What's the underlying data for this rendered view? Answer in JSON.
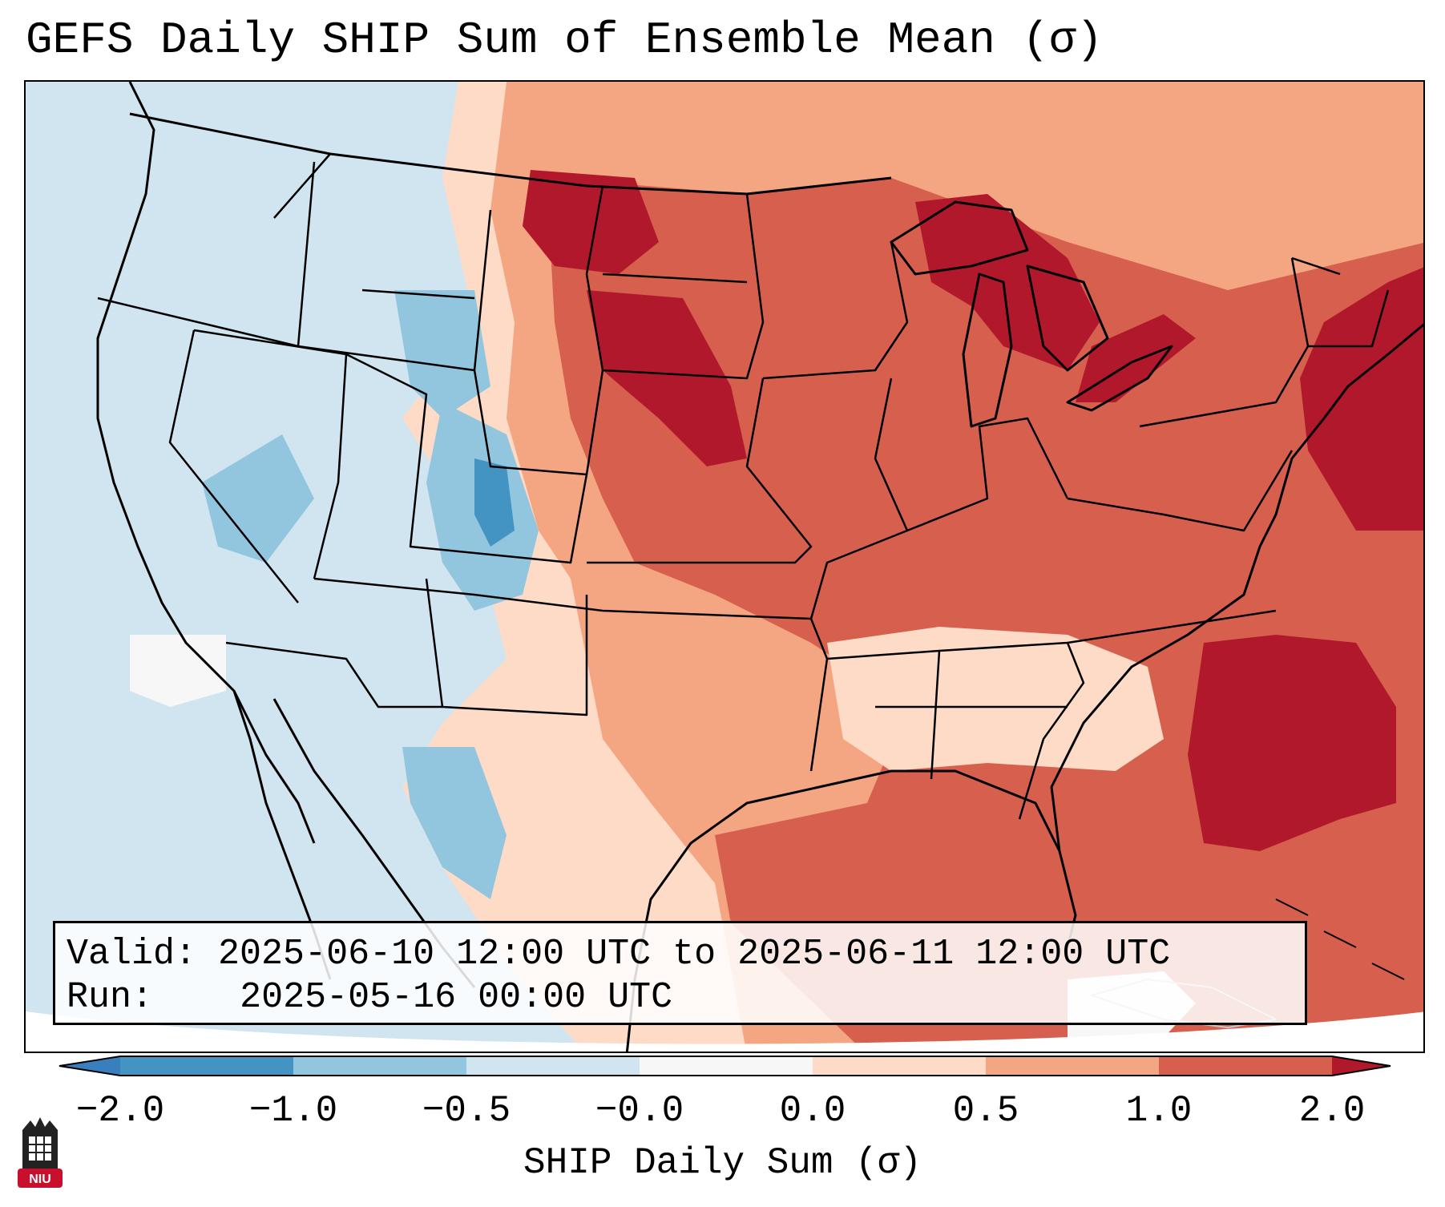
{
  "title": "GEFS Daily SHIP Sum of Ensemble Mean (σ)",
  "info": {
    "valid_label": "Valid:",
    "valid_value": "2025-06-10 12:00 UTC to 2025-06-11 12:00 UTC",
    "run_label": "Run:",
    "run_value": "2025-05-16 00:00 UTC"
  },
  "colorbar": {
    "label": "SHIP Daily Sum (σ)",
    "ticks": [
      "−2.0",
      "−1.0",
      "−0.5",
      "−0.0",
      "0.0",
      "0.5",
      "1.0",
      "2.0"
    ],
    "bins": [
      {
        "range": "< -2.0",
        "color": "#3a7fbd"
      },
      {
        "range": "-2.0 to -1.0",
        "color": "#4393c3"
      },
      {
        "range": "-1.0 to -0.5",
        "color": "#92c5de"
      },
      {
        "range": "-0.5 to -0.0",
        "color": "#d1e5f0"
      },
      {
        "range": "-0.0 to 0.0",
        "color": "#f7f7f7"
      },
      {
        "range": "0.0 to 0.5",
        "color": "#fddbc7"
      },
      {
        "range": "0.5 to 1.0",
        "color": "#f4a582"
      },
      {
        "range": "1.0 to 2.0",
        "color": "#d6604d"
      },
      {
        "range": "> 2.0",
        "color": "#b2182b"
      }
    ]
  },
  "palette": {
    "strong_negative": "#4393c3",
    "negative": "#92c5de",
    "slight_negative": "#d1e5f0",
    "neutral": "#f7f7f7",
    "slight_positive": "#fddbc7",
    "positive": "#f4a582",
    "strong_positive": "#d6604d",
    "extreme_positive": "#b2182b"
  },
  "logo": {
    "text": "NIU",
    "icon": "university-building-icon"
  }
}
